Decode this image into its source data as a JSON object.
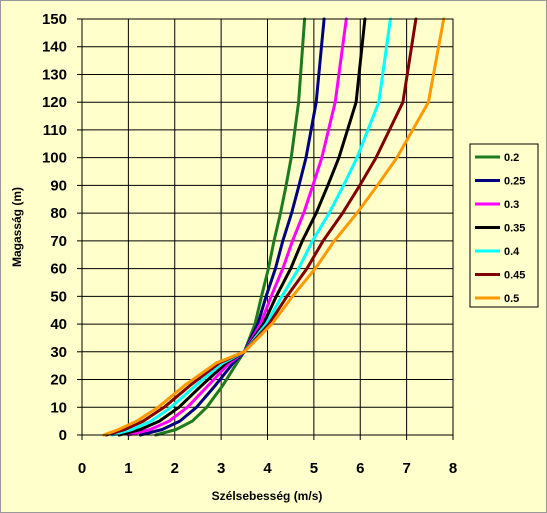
{
  "chart_data": {
    "type": "line",
    "title": "",
    "xlabel": "Szélsebesség (m/s)",
    "ylabel": "Magasság (m)",
    "xlim": [
      0,
      8
    ],
    "ylim": [
      0,
      150
    ],
    "x_ticks": [
      "0",
      "1",
      "2",
      "3",
      "4",
      "5",
      "6",
      "7",
      "8"
    ],
    "y_ticks": [
      "0",
      "10",
      "20",
      "30",
      "40",
      "50",
      "60",
      "70",
      "80",
      "90",
      "100",
      "110",
      "120",
      "130",
      "140",
      "150"
    ],
    "grid": true,
    "legend_position": "right",
    "series": [
      {
        "name": "0.2",
        "color": "#1f7a1f",
        "x": [
          1.59,
          2.03,
          2.38,
          2.69,
          3.04,
          3.34,
          3.5,
          3.73,
          3.87,
          4.02,
          4.14,
          4.28,
          4.4,
          4.51,
          4.67,
          4.8
        ],
        "y": [
          0,
          2,
          5,
          10,
          18,
          26,
          30,
          40,
          50,
          60,
          70,
          80,
          90,
          100,
          120,
          150
        ]
      },
      {
        "name": "0.25",
        "color": "#000080",
        "x": [
          1.26,
          1.73,
          2.11,
          2.47,
          2.88,
          3.26,
          3.5,
          3.79,
          3.97,
          4.17,
          4.33,
          4.52,
          4.68,
          4.83,
          5.05,
          5.22
        ],
        "y": [
          0,
          2,
          5,
          10,
          18,
          26,
          30,
          40,
          50,
          60,
          70,
          80,
          90,
          100,
          120,
          150
        ]
      },
      {
        "name": "0.3",
        "color": "#ff00ff",
        "x": [
          1.0,
          1.47,
          1.88,
          2.27,
          2.73,
          3.18,
          3.5,
          3.85,
          4.08,
          4.33,
          4.54,
          4.78,
          4.98,
          5.17,
          5.46,
          5.7
        ],
        "y": [
          0,
          2,
          5,
          10,
          18,
          26,
          30,
          40,
          50,
          60,
          70,
          80,
          90,
          100,
          120,
          150
        ]
      },
      {
        "name": "0.35",
        "color": "#000000",
        "x": [
          0.8,
          1.26,
          1.67,
          2.09,
          2.59,
          3.11,
          3.5,
          3.91,
          4.19,
          4.5,
          4.75,
          5.05,
          5.3,
          5.54,
          5.91,
          6.1
        ],
        "y": [
          0,
          2,
          5,
          10,
          18,
          26,
          30,
          40,
          50,
          60,
          70,
          80,
          90,
          100,
          120,
          150
        ]
      },
      {
        "name": "0.4",
        "color": "#00ffff",
        "x": [
          0.65,
          1.08,
          1.49,
          1.92,
          2.46,
          3.04,
          3.5,
          3.97,
          4.31,
          4.67,
          4.97,
          5.33,
          5.64,
          5.93,
          6.4,
          6.65
        ],
        "y": [
          0,
          2,
          5,
          10,
          18,
          26,
          30,
          40,
          50,
          60,
          70,
          80,
          90,
          100,
          120,
          150
        ]
      },
      {
        "name": "0.45",
        "color": "#800000",
        "x": [
          0.52,
          0.92,
          1.32,
          1.77,
          2.34,
          2.96,
          3.5,
          4.03,
          4.42,
          4.85,
          5.2,
          5.62,
          5.99,
          6.34,
          6.92,
          7.2
        ],
        "y": [
          0,
          2,
          5,
          10,
          18,
          26,
          30,
          40,
          50,
          60,
          70,
          80,
          90,
          100,
          120,
          150
        ]
      },
      {
        "name": "0.5",
        "color": "#ff9900",
        "x": [
          0.47,
          0.79,
          1.18,
          1.64,
          2.22,
          2.9,
          3.5,
          4.09,
          4.54,
          5.03,
          5.44,
          5.93,
          6.37,
          6.79,
          7.47,
          7.8
        ],
        "y": [
          0,
          2,
          5,
          10,
          18,
          26,
          30,
          40,
          50,
          60,
          70,
          80,
          90,
          100,
          120,
          150
        ]
      }
    ]
  }
}
